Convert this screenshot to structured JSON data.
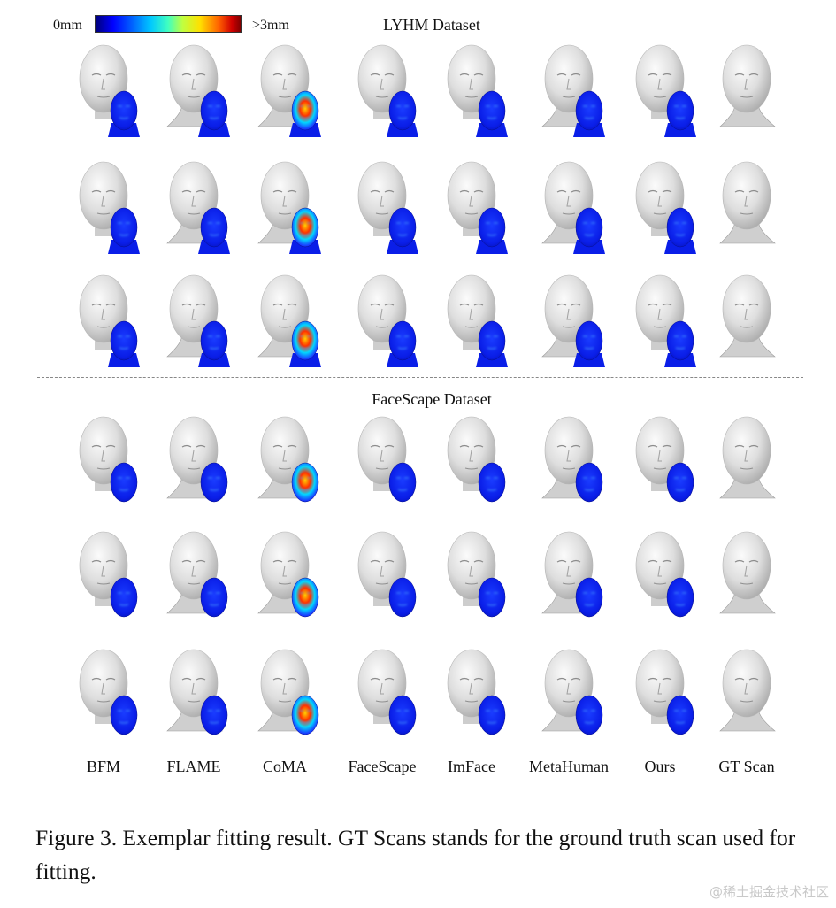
{
  "legend": {
    "min_label": "0mm",
    "max_label": ">3mm"
  },
  "sections": [
    {
      "title": "LYHM Dataset"
    },
    {
      "title": "FaceScape Dataset"
    }
  ],
  "methods": [
    "BFM",
    "FLAME",
    "CoMA",
    "FaceScape",
    "ImFace",
    "MetaHuman",
    "Ours",
    "GT Scan"
  ],
  "caption": "Figure 3. Exemplar fitting result. GT Scans stands for the ground truth scan used for fitting.",
  "watermark": "@稀土掘金技术社区"
}
